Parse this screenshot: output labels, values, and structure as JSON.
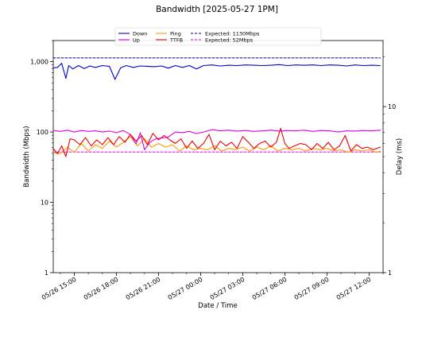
{
  "chart_data": {
    "type": "line",
    "title": "Bandwidth [2025-05-27 1PM]",
    "xlabel": "Date / Time",
    "ylabel": "Bandwidth (Mbps)",
    "ylabel_right": "Delay (ms)",
    "y_scale": "log",
    "ylim": [
      1,
      2000
    ],
    "y_ticks": [
      "1",
      "10",
      "100",
      "1,000"
    ],
    "y2_scale": "log",
    "y2_ticks": [
      "1",
      "10"
    ],
    "y2_lim": [
      1,
      25
    ],
    "x_range_hours": [
      13.5,
      37.0
    ],
    "x_tick_labels": [
      "05/26 15:00",
      "05/26 18:00",
      "05/26 21:00",
      "05/27 00:00",
      "05/27 03:00",
      "05/27 06:00",
      "05/27 09:00",
      "05/27 12:00"
    ],
    "x_tick_hours": [
      15,
      18,
      21,
      24,
      27,
      30,
      33,
      36
    ],
    "grid": false,
    "legend_position": "top-center",
    "series": [
      {
        "name": "Down",
        "color": "#0000cc",
        "axis": "left",
        "x": [
          13.5,
          13.8,
          14.1,
          14.4,
          14.6,
          14.9,
          15.3,
          15.7,
          16.1,
          16.5,
          17.0,
          17.5,
          17.9,
          18.3,
          18.7,
          19.2,
          19.7,
          20.2,
          20.7,
          21.2,
          21.7,
          22.2,
          22.7,
          23.2,
          23.7,
          24.2,
          24.8,
          25.4,
          26.0,
          26.6,
          27.2,
          27.8,
          28.4,
          29.0,
          29.6,
          30.2,
          30.8,
          31.4,
          32.0,
          32.6,
          33.2,
          33.8,
          34.4,
          35.0,
          35.6,
          36.2,
          36.8
        ],
        "values": [
          820,
          830,
          950,
          580,
          880,
          790,
          880,
          800,
          870,
          830,
          880,
          860,
          560,
          820,
          880,
          830,
          870,
          860,
          850,
          870,
          810,
          880,
          830,
          880,
          790,
          880,
          900,
          870,
          890,
          880,
          900,
          890,
          880,
          890,
          910,
          880,
          900,
          890,
          900,
          880,
          900,
          890,
          870,
          900,
          880,
          890,
          880
        ]
      },
      {
        "name": "Up",
        "color": "#dd00dd",
        "axis": "left",
        "x": [
          13.5,
          14.0,
          14.5,
          15.0,
          15.5,
          16.0,
          16.5,
          17.0,
          17.5,
          18.0,
          18.5,
          19.0,
          19.4,
          19.7,
          20.0,
          20.4,
          20.8,
          21.2,
          21.7,
          22.2,
          22.7,
          23.2,
          23.7,
          24.2,
          24.8,
          25.4,
          26.0,
          26.6,
          27.2,
          27.8,
          28.4,
          29.0,
          29.6,
          30.2,
          30.8,
          31.4,
          32.0,
          32.6,
          33.2,
          33.8,
          34.4,
          35.0,
          35.6,
          36.2,
          36.8
        ],
        "values": [
          105,
          102,
          106,
          100,
          105,
          102,
          104,
          100,
          103,
          98,
          105,
          92,
          68,
          98,
          56,
          72,
          80,
          82,
          85,
          100,
          98,
          102,
          95,
          100,
          108,
          104,
          106,
          103,
          105,
          102,
          104,
          106,
          103,
          105,
          104,
          106,
          102,
          105,
          104,
          100,
          104,
          103,
          105,
          104,
          106
        ]
      },
      {
        "name": "Expected: 1130Mbps",
        "color": "#000088",
        "axis": "left",
        "dashed": true,
        "x": [
          13.5,
          36.8
        ],
        "values": [
          1130,
          1130
        ]
      },
      {
        "name": "Expected: 52Mbps",
        "color": "#ee00ee",
        "axis": "left",
        "dashed": true,
        "x": [
          13.5,
          36.8
        ],
        "values": [
          52,
          52
        ]
      },
      {
        "name": "Ping",
        "color": "#ff9900",
        "axis": "right",
        "x": [
          13.5,
          14.0,
          14.5,
          15.0,
          15.5,
          16.0,
          16.5,
          17.0,
          17.5,
          18.0,
          18.5,
          19.0,
          19.5,
          20.0,
          20.5,
          21.0,
          21.5,
          22.0,
          22.5,
          23.0,
          23.5,
          24.0,
          24.5,
          25.0,
          25.5,
          26.0,
          26.5,
          27.0,
          27.5,
          28.0,
          28.5,
          29.0,
          29.5,
          30.0,
          30.5,
          31.0,
          31.5,
          32.0,
          32.5,
          33.0,
          33.5,
          34.0,
          34.5,
          35.0,
          35.5,
          36.0,
          36.5,
          36.8
        ],
        "values": [
          5.3,
          5.2,
          5.7,
          5.3,
          6.0,
          5.4,
          5.9,
          5.6,
          6.2,
          5.7,
          6.1,
          6.6,
          5.8,
          6.4,
          5.7,
          6.0,
          5.7,
          5.9,
          5.4,
          5.8,
          5.5,
          5.6,
          5.5,
          5.8,
          5.4,
          5.6,
          5.5,
          5.7,
          5.4,
          5.7,
          5.5,
          5.8,
          5.4,
          5.6,
          5.5,
          5.6,
          5.4,
          5.6,
          5.5,
          5.6,
          5.4,
          5.5,
          5.3,
          5.5,
          5.4,
          5.5,
          5.3,
          5.4
        ]
      },
      {
        "name": "TTFB",
        "color": "#ee0000",
        "axis": "right",
        "x": [
          13.5,
          13.8,
          14.1,
          14.4,
          14.7,
          15.0,
          15.4,
          15.8,
          16.2,
          16.6,
          17.0,
          17.4,
          17.8,
          18.2,
          18.6,
          19.0,
          19.4,
          19.8,
          20.2,
          20.6,
          21.0,
          21.4,
          21.8,
          22.2,
          22.6,
          23.0,
          23.4,
          23.8,
          24.2,
          24.6,
          25.0,
          25.4,
          25.8,
          26.2,
          26.6,
          27.0,
          27.4,
          27.8,
          28.2,
          28.6,
          29.0,
          29.4,
          29.7,
          30.0,
          30.3,
          30.7,
          31.1,
          31.5,
          31.9,
          32.3,
          32.7,
          33.1,
          33.5,
          33.9,
          34.3,
          34.7,
          35.1,
          35.5,
          35.9,
          36.3,
          36.8
        ],
        "values": [
          5.6,
          5.2,
          5.8,
          5.0,
          6.4,
          6.3,
          5.9,
          6.5,
          5.8,
          6.3,
          5.9,
          6.5,
          5.9,
          6.6,
          6.1,
          6.8,
          6.2,
          6.7,
          5.9,
          6.9,
          6.3,
          6.7,
          6.3,
          6.0,
          6.4,
          5.6,
          6.2,
          5.6,
          6.0,
          6.8,
          5.5,
          6.2,
          5.8,
          6.1,
          5.6,
          6.6,
          6.1,
          5.6,
          6.0,
          6.2,
          5.7,
          6.1,
          7.4,
          6.0,
          5.6,
          5.8,
          6.0,
          5.9,
          5.5,
          6.0,
          5.6,
          6.1,
          5.5,
          5.8,
          6.7,
          5.4,
          5.9,
          5.6,
          5.7,
          5.5,
          5.7
        ]
      }
    ]
  }
}
